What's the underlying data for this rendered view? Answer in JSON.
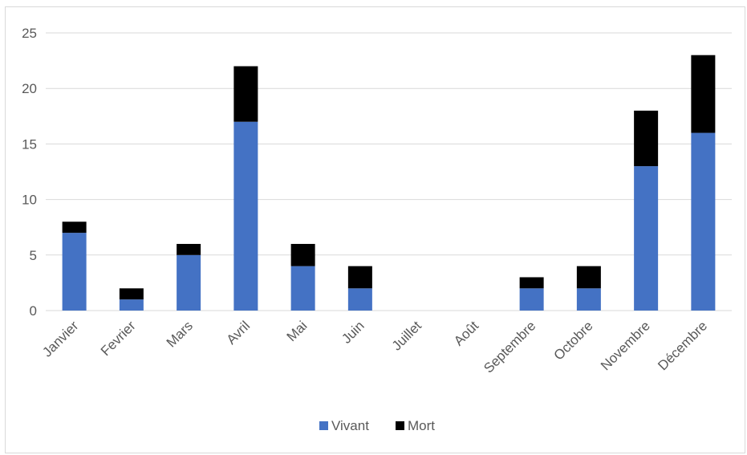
{
  "chart_data": {
    "type": "bar",
    "stacked": true,
    "categories": [
      "Janvier",
      "Fevrier",
      "Mars",
      "Avril",
      "Mai",
      "Juin",
      "Juillet",
      "Août",
      "Septembre",
      "Octobre",
      "Novembre",
      "Décembre"
    ],
    "series": [
      {
        "name": "Vivant",
        "color": "#4472c4",
        "values": [
          7,
          1,
          5,
          17,
          4,
          2,
          0,
          0,
          2,
          2,
          13,
          16
        ]
      },
      {
        "name": "Mort",
        "color": "#000000",
        "values": [
          1,
          1,
          1,
          5,
          2,
          2,
          0,
          0,
          1,
          2,
          5,
          7
        ]
      }
    ],
    "ylim": [
      0,
      25
    ],
    "yticks": [
      0,
      5,
      10,
      15,
      20,
      25
    ],
    "grid": true,
    "legend_position": "bottom",
    "gridline_color": "#d9d9d9"
  }
}
